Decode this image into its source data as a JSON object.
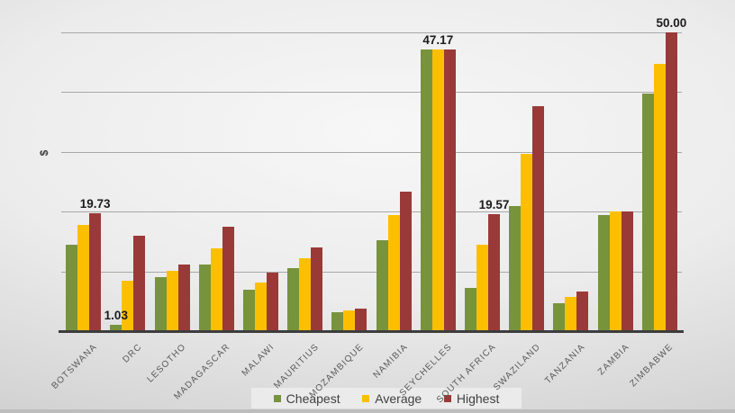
{
  "chart_data": {
    "type": "bar",
    "title": "",
    "ylabel": "$",
    "xlabel": "",
    "ylim": [
      0,
      50
    ],
    "gridline_values": [
      10,
      20,
      30,
      40,
      50
    ],
    "grid": "horizontal",
    "legend_position": "bottom",
    "categories": [
      "BOTSWANA",
      "DRC",
      "LESOTHO",
      "MADAGASCAR",
      "MALAWI",
      "MAURITIUS",
      "MOZAMBIQUE",
      "NAMIBIA",
      "SEYCHELLES",
      "SOUTH AFRICA",
      "SWAZILAND",
      "TANZANIA",
      "ZAMBIA",
      "ZIMBABWE"
    ],
    "series": [
      {
        "name": "Cheapest",
        "color": "#77933C",
        "values": [
          14.5,
          1.03,
          9.0,
          11.2,
          7.0,
          10.6,
          3.2,
          15.2,
          47.17,
          7.2,
          21.0,
          4.7,
          19.4,
          39.7
        ]
      },
      {
        "name": "Average",
        "color": "#FCBF00",
        "values": [
          17.8,
          8.4,
          10.1,
          13.8,
          8.2,
          12.2,
          3.4,
          19.5,
          47.17,
          14.5,
          29.7,
          5.7,
          20.0,
          44.7
        ]
      },
      {
        "name": "Highest",
        "color": "#9A3A38",
        "values": [
          19.73,
          16.0,
          11.1,
          17.4,
          9.8,
          14.0,
          3.7,
          23.4,
          47.17,
          19.57,
          37.6,
          6.7,
          20.0,
          50.0
        ]
      }
    ],
    "data_labels": [
      {
        "category_index": 0,
        "series_index": 2,
        "text": "19.73"
      },
      {
        "category_index": 1,
        "series_index": 0,
        "text": "1.03"
      },
      {
        "category_index": 8,
        "series_index": -1,
        "text": "47.17"
      },
      {
        "category_index": 9,
        "series_index": 2,
        "text": "19.57"
      },
      {
        "category_index": 13,
        "series_index": 2,
        "text": "50.00"
      }
    ]
  },
  "legend": {
    "items": [
      {
        "label": "Cheapest",
        "color": "#77933C"
      },
      {
        "label": "Average",
        "color": "#FCBF00"
      },
      {
        "label": "Highest",
        "color": "#9A3A38"
      }
    ]
  }
}
